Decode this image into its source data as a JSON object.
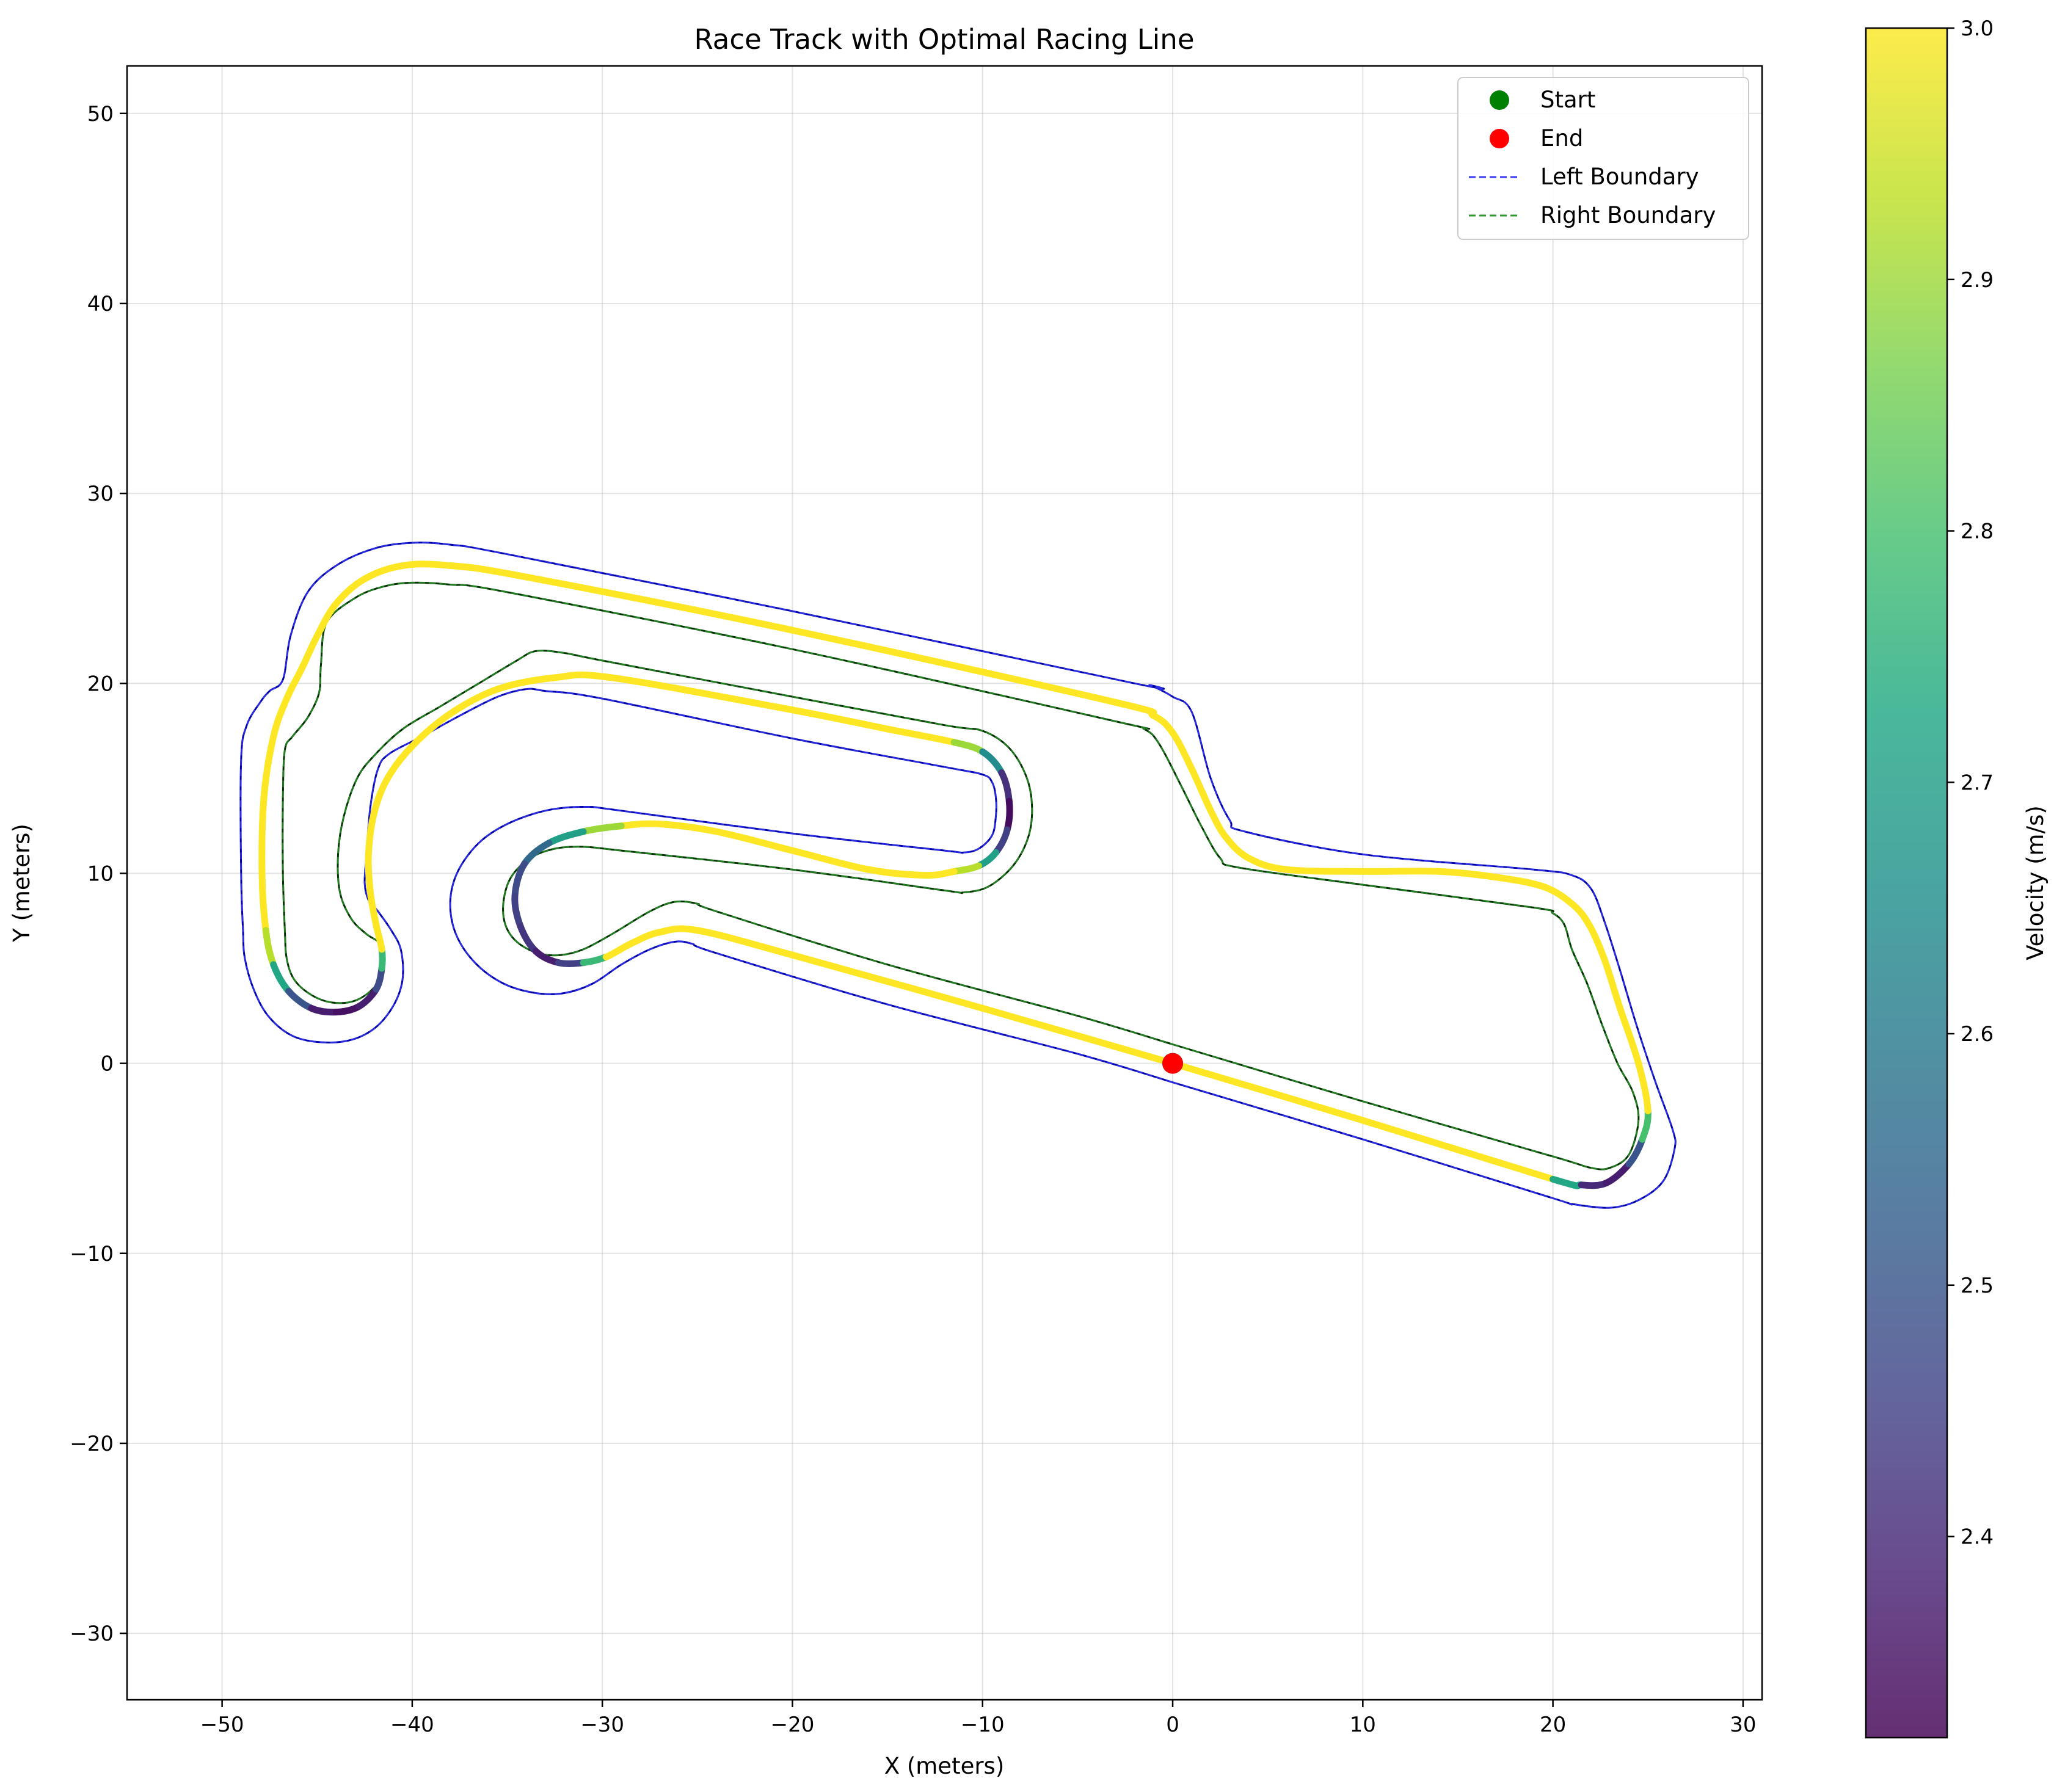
{
  "chart_data": {
    "type": "line",
    "title": "Race Track with Optimal Racing Line",
    "xlabel": "X (meters)",
    "ylabel": "Y (meters)",
    "xlim": [
      -55,
      31
    ],
    "ylim": [
      -33.5,
      52.5
    ],
    "xticks": [
      -50,
      -40,
      -30,
      -20,
      -10,
      0,
      10,
      20,
      30
    ],
    "yticks": [
      -30,
      -20,
      -10,
      0,
      10,
      20,
      30,
      40,
      50
    ],
    "xtick_labels": [
      "−50",
      "−40",
      "−30",
      "−20",
      "−10",
      "0",
      "10",
      "20",
      "30"
    ],
    "ytick_labels": [
      "−30",
      "−20",
      "−10",
      "0",
      "10",
      "20",
      "30",
      "40",
      "50"
    ],
    "grid": true,
    "legend_position": "top-right",
    "legend": [
      {
        "label": "Start",
        "kind": "marker",
        "color": "#008000"
      },
      {
        "label": "End",
        "kind": "marker",
        "color": "#ff0000"
      },
      {
        "label": "Left Boundary",
        "kind": "dashed-line",
        "color": "#3b3bf5"
      },
      {
        "label": "Right Boundary",
        "kind": "dashed-line",
        "color": "#2e9a2e"
      }
    ],
    "colorbar": {
      "label": "Velocity (m/s)",
      "vmin": 2.32,
      "vmax": 3.0,
      "ticks": [
        2.4,
        2.5,
        2.6,
        2.7,
        2.8,
        2.9,
        3.0
      ],
      "tick_labels": [
        "2.4",
        "2.5",
        "2.6",
        "2.7",
        "2.8",
        "2.9",
        "3.0"
      ],
      "colormap": "viridis"
    },
    "series": [
      {
        "name": "Left Boundary",
        "color": "#0000aa",
        "dash_color": "#3b3bf5",
        "points": [
          [
            0,
            -1
          ],
          [
            10,
            -4
          ],
          [
            20,
            -7.1
          ],
          [
            21,
            -7.4
          ],
          [
            23,
            -7.6
          ],
          [
            24.5,
            -7.2
          ],
          [
            25.8,
            -6.2
          ],
          [
            26.4,
            -4.5
          ],
          [
            26.3,
            -3.5
          ],
          [
            25.4,
            -1
          ],
          [
            24.4,
            2
          ],
          [
            23.5,
            5
          ],
          [
            22.7,
            7.5
          ],
          [
            22,
            9.2
          ],
          [
            21,
            9.9
          ],
          [
            19,
            10.2
          ],
          [
            10,
            11
          ],
          [
            3.8,
            12.2
          ],
          [
            3,
            12.8
          ],
          [
            2,
            15
          ],
          [
            1,
            18.5
          ],
          [
            0,
            19.3
          ],
          [
            -1.2,
            19.9
          ],
          [
            -2,
            20
          ],
          [
            -20,
            23.8
          ],
          [
            -35,
            26.8
          ],
          [
            -38,
            27.3
          ],
          [
            -40,
            27.4
          ],
          [
            -42,
            27.1
          ],
          [
            -44,
            26.2
          ],
          [
            -45.5,
            24.8
          ],
          [
            -46.4,
            22.5
          ],
          [
            -46.8,
            20.2
          ],
          [
            -47.5,
            19.6
          ],
          [
            -48,
            19
          ],
          [
            -48.7,
            17.8
          ],
          [
            -49,
            16
          ],
          [
            -49,
            10
          ],
          [
            -48.9,
            7
          ],
          [
            -48.8,
            5.5
          ],
          [
            -48.3,
            3.8
          ],
          [
            -47.5,
            2.4
          ],
          [
            -46.2,
            1.4
          ],
          [
            -44.5,
            1.1
          ],
          [
            -43,
            1.3
          ],
          [
            -41.8,
            2
          ],
          [
            -40.9,
            3.2
          ],
          [
            -40.5,
            4.5
          ],
          [
            -40.6,
            6
          ],
          [
            -41.1,
            7
          ],
          [
            -41.8,
            8
          ],
          [
            -42.3,
            8.6
          ],
          [
            -42.5,
            9.5
          ],
          [
            -42.4,
            11
          ],
          [
            -42.2,
            13.5
          ],
          [
            -41.8,
            15.5
          ],
          [
            -41.2,
            16.3
          ],
          [
            -39.5,
            17.2
          ],
          [
            -37.5,
            18.3
          ],
          [
            -35.5,
            19.3
          ],
          [
            -34,
            19.7
          ],
          [
            -33,
            19.6
          ],
          [
            -30,
            19.2
          ],
          [
            -20,
            17.1
          ],
          [
            -12,
            15.6
          ],
          [
            -10,
            15.2
          ],
          [
            -9.5,
            14.8
          ],
          [
            -9.3,
            14
          ],
          [
            -9.3,
            13
          ],
          [
            -9.5,
            12
          ],
          [
            -10.2,
            11.3
          ],
          [
            -11,
            11.1
          ],
          [
            -12,
            11.2
          ],
          [
            -20,
            12.1
          ],
          [
            -29,
            13.3
          ],
          [
            -31,
            13.5
          ],
          [
            -33,
            13.3
          ],
          [
            -35,
            12.6
          ],
          [
            -36.5,
            11.6
          ],
          [
            -37.6,
            10.1
          ],
          [
            -38,
            8.5
          ],
          [
            -37.7,
            6.8
          ],
          [
            -36.7,
            5.3
          ],
          [
            -35.2,
            4.2
          ],
          [
            -33.5,
            3.7
          ],
          [
            -32,
            3.7
          ],
          [
            -30.5,
            4.2
          ],
          [
            -29,
            5.2
          ],
          [
            -27.5,
            6
          ],
          [
            -26.2,
            6.4
          ],
          [
            -25.3,
            6.3
          ],
          [
            -24,
            5.8
          ],
          [
            -15,
            3.1
          ],
          [
            -5,
            0.5
          ],
          [
            0,
            -1
          ]
        ]
      },
      {
        "name": "Right Boundary",
        "color": "#003300",
        "dash_color": "#2e9a2e",
        "points": [
          [
            0,
            1
          ],
          [
            10,
            -2
          ],
          [
            20,
            -4.9
          ],
          [
            22,
            -5.5
          ],
          [
            23,
            -5.5
          ],
          [
            24,
            -4.8
          ],
          [
            24.5,
            -3
          ],
          [
            24.2,
            -1.5
          ],
          [
            23.4,
            0
          ],
          [
            22.6,
            2
          ],
          [
            21.8,
            4.2
          ],
          [
            21,
            6
          ],
          [
            20.6,
            7.3
          ],
          [
            20,
            7.9
          ],
          [
            19,
            8.2
          ],
          [
            10,
            9.4
          ],
          [
            3.5,
            10.3
          ],
          [
            2.5,
            10.8
          ],
          [
            1.5,
            12.5
          ],
          [
            0.5,
            14.5
          ],
          [
            -0.7,
            16.8
          ],
          [
            -1.5,
            17.6
          ],
          [
            -3,
            18
          ],
          [
            -20,
            21.8
          ],
          [
            -35,
            24.8
          ],
          [
            -38,
            25.2
          ],
          [
            -40,
            25.3
          ],
          [
            -41.5,
            25.1
          ],
          [
            -43,
            24.5
          ],
          [
            -44.5,
            23.2
          ],
          [
            -44.8,
            21
          ],
          [
            -44.9,
            19.5
          ],
          [
            -45.5,
            18.2
          ],
          [
            -46.3,
            17.2
          ],
          [
            -46.7,
            16.5
          ],
          [
            -46.8,
            14
          ],
          [
            -46.8,
            10
          ],
          [
            -46.7,
            7
          ],
          [
            -46.6,
            5.5
          ],
          [
            -46.2,
            4.4
          ],
          [
            -45.3,
            3.6
          ],
          [
            -44.2,
            3.2
          ],
          [
            -43,
            3.3
          ],
          [
            -42,
            4
          ],
          [
            -41.5,
            5
          ],
          [
            -41.6,
            6.2
          ],
          [
            -42.4,
            6.8
          ],
          [
            -43.2,
            7.6
          ],
          [
            -43.8,
            9
          ],
          [
            -43.9,
            11
          ],
          [
            -43.6,
            13
          ],
          [
            -42.9,
            15
          ],
          [
            -42,
            16.2
          ],
          [
            -40.5,
            17.6
          ],
          [
            -38.5,
            18.8
          ],
          [
            -36.5,
            20
          ],
          [
            -34.5,
            21.2
          ],
          [
            -33.5,
            21.7
          ],
          [
            -32,
            21.6
          ],
          [
            -30,
            21.2
          ],
          [
            -20,
            19.3
          ],
          [
            -12,
            17.8
          ],
          [
            -10,
            17.5
          ],
          [
            -8.6,
            16.6
          ],
          [
            -7.7,
            15.1
          ],
          [
            -7.4,
            13.5
          ],
          [
            -7.6,
            11.9
          ],
          [
            -8.4,
            10.4
          ],
          [
            -9.7,
            9.3
          ],
          [
            -11,
            9
          ],
          [
            -12,
            9.1
          ],
          [
            -20,
            10.2
          ],
          [
            -29,
            11.2
          ],
          [
            -31,
            11.4
          ],
          [
            -32.5,
            11.3
          ],
          [
            -33.8,
            10.8
          ],
          [
            -34.8,
            9.8
          ],
          [
            -35.2,
            8.5
          ],
          [
            -35.1,
            7.3
          ],
          [
            -34.5,
            6.4
          ],
          [
            -33.4,
            5.8
          ],
          [
            -32.2,
            5.7
          ],
          [
            -31,
            6
          ],
          [
            -29.5,
            6.8
          ],
          [
            -27.5,
            8
          ],
          [
            -26.2,
            8.5
          ],
          [
            -25,
            8.4
          ],
          [
            -24,
            8
          ],
          [
            -15,
            5.2
          ],
          [
            -5,
            2.5
          ],
          [
            0,
            1
          ]
        ]
      },
      {
        "name": "Racing Line",
        "colored_by": "velocity",
        "points": [
          [
            0,
            0,
            3.0
          ],
          [
            10,
            -3,
            3.0
          ],
          [
            20,
            -6.1,
            3.0
          ],
          [
            21.5,
            -6.4,
            2.45
          ],
          [
            22.8,
            -6.3,
            2.35
          ],
          [
            24,
            -5.3,
            2.4
          ],
          [
            24.7,
            -4,
            2.6
          ],
          [
            25,
            -2.5,
            3.0
          ],
          [
            24.5,
            0,
            3.0
          ],
          [
            23.5,
            3,
            3.0
          ],
          [
            22.7,
            5.5,
            3.0
          ],
          [
            21.9,
            7.3,
            3.0
          ],
          [
            21,
            8.4,
            3.0
          ],
          [
            19.5,
            9.3,
            3.0
          ],
          [
            17,
            9.8,
            3.0
          ],
          [
            14,
            10.1,
            3.0
          ],
          [
            10,
            10.1,
            3.0
          ],
          [
            6,
            10.2,
            3.0
          ],
          [
            4,
            10.8,
            3.0
          ],
          [
            2.8,
            11.9,
            3.0
          ],
          [
            2,
            13.3,
            3.0
          ],
          [
            1,
            15.5,
            3.0
          ],
          [
            0,
            17.4,
            3.0
          ],
          [
            -1,
            18.3,
            3.0
          ],
          [
            -3,
            19,
            3.0
          ],
          [
            -20,
            22.8,
            3.0
          ],
          [
            -34,
            25.6,
            3.0
          ],
          [
            -38,
            26.2,
            3.0
          ],
          [
            -40.5,
            26.2,
            3.0
          ],
          [
            -42.5,
            25.5,
            3.0
          ],
          [
            -44,
            24.2,
            3.0
          ],
          [
            -45,
            22.5,
            3.0
          ],
          [
            -45.8,
            20.8,
            3.0
          ],
          [
            -46.6,
            19.2,
            3.0
          ],
          [
            -47.3,
            17.2,
            3.0
          ],
          [
            -47.8,
            14,
            3.0
          ],
          [
            -47.9,
            10,
            3.0
          ],
          [
            -47.7,
            7,
            3.0
          ],
          [
            -47.3,
            5.2,
            2.85
          ],
          [
            -46.5,
            3.8,
            2.6
          ],
          [
            -45.3,
            2.9,
            2.4
          ],
          [
            -44,
            2.7,
            2.35
          ],
          [
            -42.8,
            3,
            2.35
          ],
          [
            -41.9,
            3.9,
            2.4
          ],
          [
            -41.6,
            5,
            2.55
          ],
          [
            -41.6,
            6,
            3.0
          ],
          [
            -41.9,
            7.3,
            3.0
          ],
          [
            -42.2,
            9,
            3.0
          ],
          [
            -42.3,
            11,
            3.0
          ],
          [
            -42,
            13.2,
            3.0
          ],
          [
            -41.3,
            15,
            3.0
          ],
          [
            -40,
            16.7,
            3.0
          ],
          [
            -38,
            18.4,
            3.0
          ],
          [
            -35.5,
            19.7,
            3.0
          ],
          [
            -32.5,
            20.3,
            3.0
          ],
          [
            -29.5,
            20.3,
            3.0
          ],
          [
            -20,
            18.6,
            3.0
          ],
          [
            -15,
            17.6,
            3.0
          ],
          [
            -11.5,
            16.9,
            3.0
          ],
          [
            -10,
            16.4,
            2.8
          ],
          [
            -9,
            15.3,
            2.5
          ],
          [
            -8.6,
            13.8,
            2.33
          ],
          [
            -8.7,
            12.3,
            2.35
          ],
          [
            -9.3,
            11.1,
            2.55
          ],
          [
            -10.2,
            10.4,
            2.85
          ],
          [
            -11.5,
            10.1,
            3.0
          ],
          [
            -13,
            9.9,
            3.0
          ],
          [
            -16,
            10.2,
            3.0
          ],
          [
            -20,
            11.2,
            3.0
          ],
          [
            -24,
            12.2,
            3.0
          ],
          [
            -27,
            12.6,
            3.0
          ],
          [
            -29,
            12.5,
            3.0
          ],
          [
            -31,
            12.2,
            2.8
          ],
          [
            -32.8,
            11.6,
            2.6
          ],
          [
            -34.1,
            10.5,
            2.5
          ],
          [
            -34.6,
            8.8,
            2.45
          ],
          [
            -34.3,
            7.2,
            2.45
          ],
          [
            -33.5,
            5.9,
            2.4
          ],
          [
            -32.3,
            5.3,
            2.35
          ],
          [
            -31,
            5.3,
            2.55
          ],
          [
            -29.8,
            5.6,
            3.0
          ],
          [
            -28.5,
            6.3,
            3.0
          ],
          [
            -27,
            6.9,
            3.0
          ],
          [
            -25,
            7,
            3.0
          ],
          [
            -20,
            5.7,
            3.0
          ],
          [
            -10,
            2.9,
            3.0
          ],
          [
            0,
            0,
            3.0
          ]
        ]
      },
      {
        "name": "Start",
        "kind": "marker",
        "color": "#008000",
        "points": [
          [
            0,
            0
          ]
        ]
      },
      {
        "name": "End",
        "kind": "marker",
        "color": "#ff0000",
        "points": [
          [
            0,
            0
          ]
        ]
      }
    ]
  }
}
